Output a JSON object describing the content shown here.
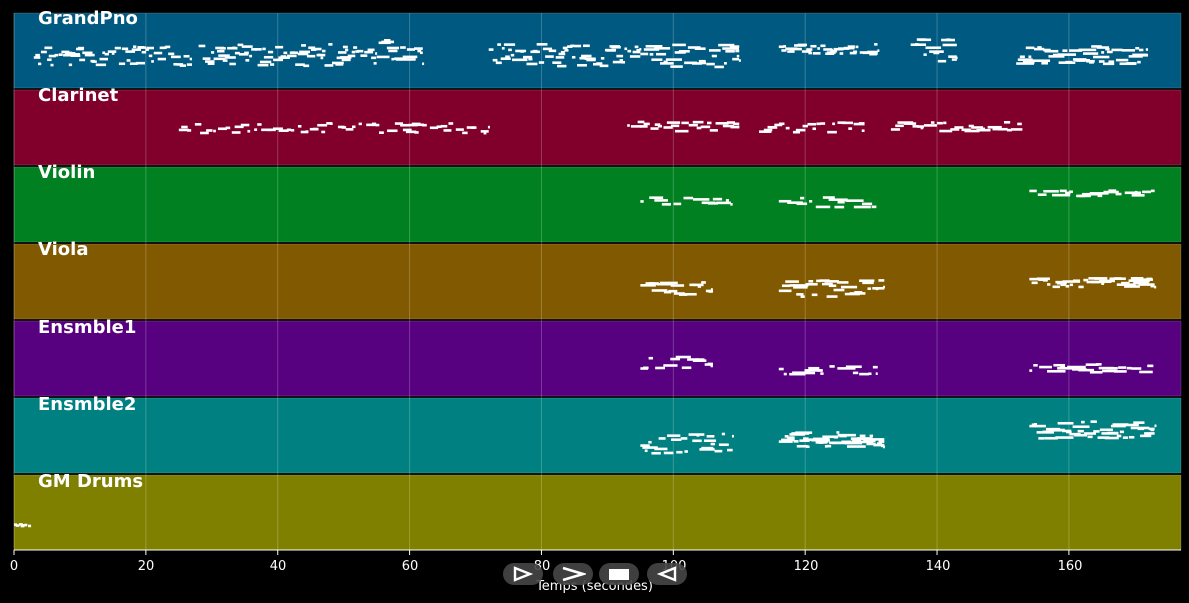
{
  "tracks": [
    {
      "name": "GrandPno",
      "color": "#005980"
    },
    {
      "name": "Clarinet",
      "color": "#80002b"
    },
    {
      "name": "Violin",
      "color": "#008021"
    },
    {
      "name": "Viola",
      "color": "#805900"
    },
    {
      "name": "Ensmble1",
      "color": "#570080"
    },
    {
      "name": "Ensmble2",
      "color": "#008080"
    },
    {
      "name": "GM Drums",
      "color": "#808000"
    }
  ],
  "x_axis": {
    "label": "Temps (secondes)",
    "ticks": [
      "0",
      "20",
      "40",
      "60",
      "80",
      "100",
      "120",
      "140",
      "160"
    ],
    "range": [
      0,
      177
    ]
  },
  "controls": [
    {
      "name": "play-icon"
    },
    {
      "name": "forward-icon"
    },
    {
      "name": "stop-icon"
    },
    {
      "name": "rewind-icon"
    }
  ]
}
